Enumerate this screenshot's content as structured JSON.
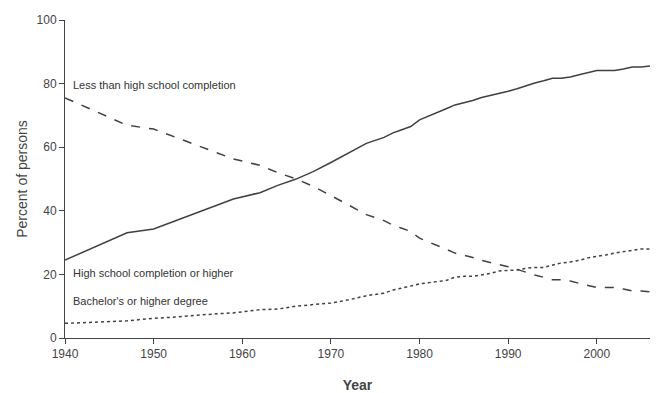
{
  "chart_data": {
    "type": "line",
    "x": [
      1940,
      1947,
      1950,
      1952,
      1957,
      1959,
      1962,
      1964,
      1966,
      1968,
      1970,
      1972,
      1974,
      1976,
      1977,
      1978,
      1979,
      1980,
      1981,
      1982,
      1983,
      1984,
      1985,
      1986,
      1987,
      1988,
      1989,
      1990,
      1991,
      1992,
      1993,
      1994,
      1995,
      1996,
      1997,
      1998,
      1999,
      2000,
      2001,
      2002,
      2003,
      2004,
      2005,
      2006
    ],
    "series": [
      {
        "name": "High school completion or higher",
        "color": "#404040",
        "line_style": "solid",
        "values": [
          24.5,
          33.1,
          34.3,
          36.4,
          41.6,
          43.7,
          45.7,
          48.0,
          49.9,
          52.3,
          55.2,
          58.2,
          61.2,
          63.1,
          64.5,
          65.5,
          66.5,
          68.6,
          69.7,
          71.0,
          72.1,
          73.3,
          73.9,
          74.7,
          75.6,
          76.2,
          76.9,
          77.6,
          78.4,
          79.4,
          80.2,
          80.9,
          81.7,
          81.7,
          82.1,
          82.8,
          83.4,
          84.1,
          84.1,
          84.1,
          84.6,
          85.2,
          85.2,
          85.5
        ]
      },
      {
        "name": "Less than high school completion",
        "color": "#404040",
        "line_style": "dash",
        "values": [
          75.5,
          66.9,
          65.7,
          63.6,
          58.4,
          56.3,
          54.3,
          52.0,
          50.1,
          47.7,
          44.8,
          41.8,
          38.8,
          36.9,
          35.5,
          34.5,
          33.5,
          31.4,
          30.3,
          29.0,
          27.9,
          26.7,
          26.1,
          25.3,
          24.4,
          23.8,
          23.1,
          22.4,
          21.6,
          20.6,
          19.8,
          19.1,
          18.3,
          18.3,
          17.9,
          17.2,
          16.6,
          15.9,
          15.9,
          15.9,
          15.4,
          14.8,
          14.8,
          14.5
        ]
      },
      {
        "name": "Bachelor's or higher degree",
        "color": "#404040",
        "line_style": "dot",
        "values": [
          4.6,
          5.4,
          6.2,
          6.5,
          7.6,
          7.9,
          8.9,
          9.1,
          10.0,
          10.5,
          11.0,
          12.0,
          13.3,
          14.1,
          15.1,
          15.7,
          16.4,
          17.0,
          17.4,
          17.7,
          18.1,
          19.1,
          19.4,
          19.4,
          19.9,
          20.3,
          21.1,
          21.3,
          21.4,
          21.9,
          22.2,
          22.2,
          23.0,
          23.6,
          23.9,
          24.4,
          25.2,
          25.6,
          26.1,
          26.7,
          27.2,
          27.7,
          28.0,
          28.0
        ]
      }
    ],
    "x_label": "Year",
    "y_label": "Percent of persons",
    "xlim": [
      1940,
      2006
    ],
    "xticks": [
      1940,
      1950,
      1960,
      1970,
      1980,
      1990,
      2000
    ],
    "ylim": [
      0,
      100
    ],
    "yticks": [
      0,
      20,
      40,
      60,
      80,
      100
    ],
    "grid": false
  }
}
